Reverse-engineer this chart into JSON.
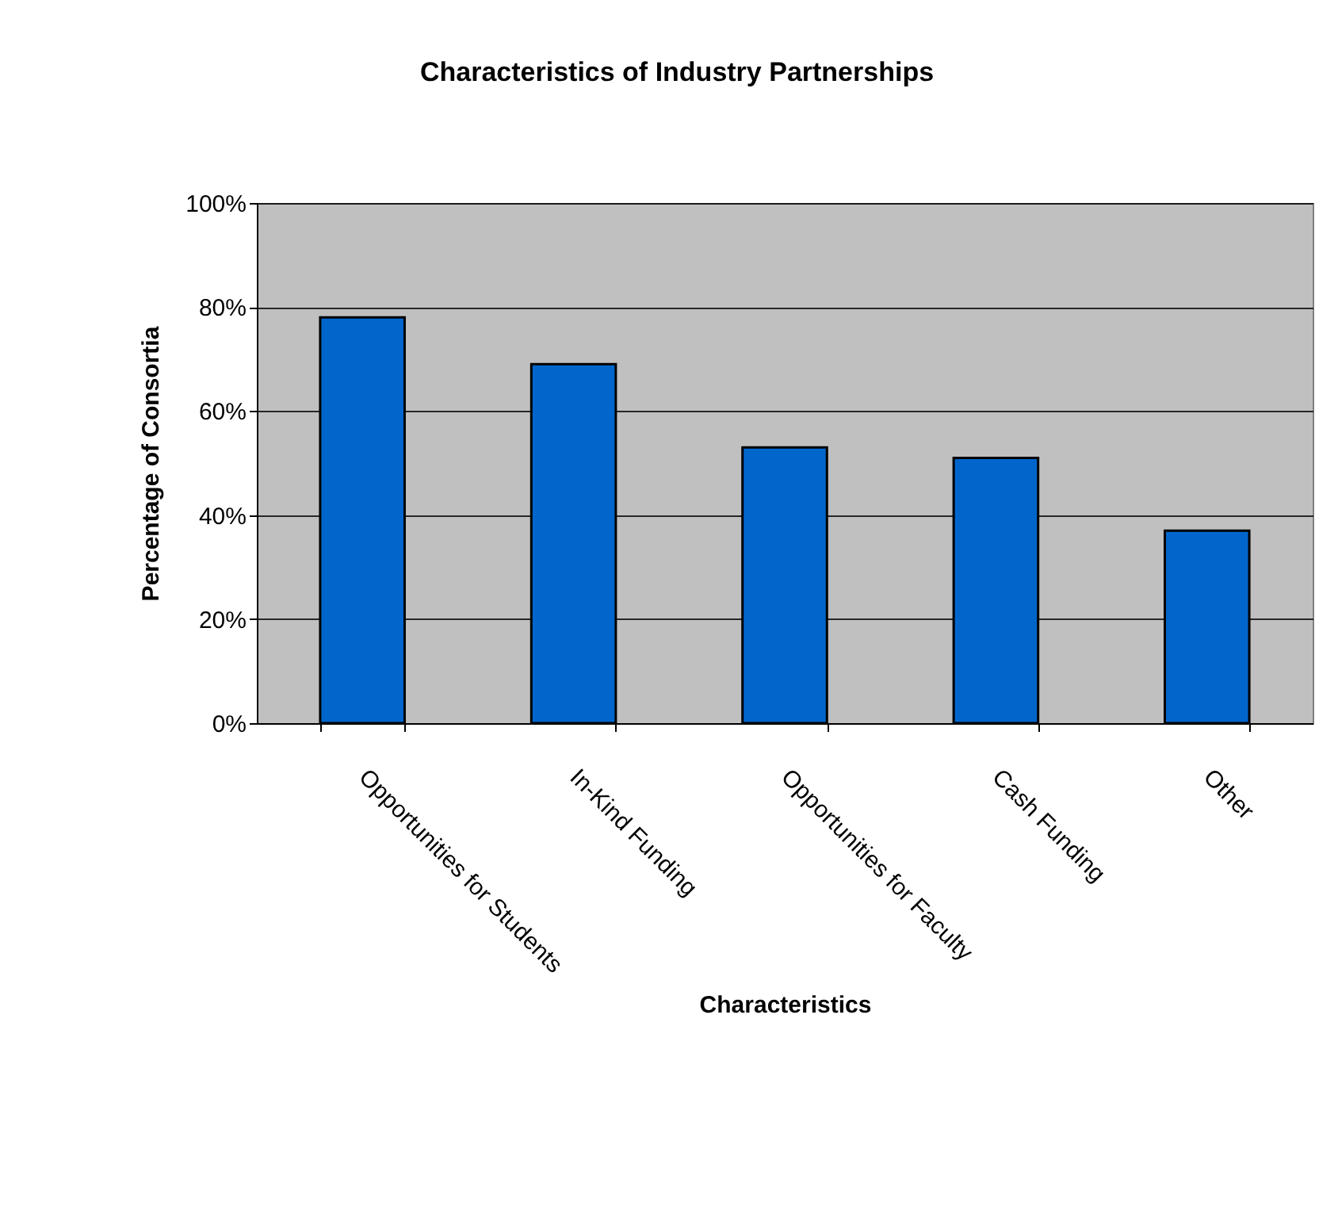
{
  "chart_data": {
    "type": "bar",
    "title": "Characteristics of Industry Partnerships",
    "xlabel": "Characteristics",
    "ylabel": "Percentage of Consortia",
    "categories": [
      "Opportunities for Students",
      "In-Kind Funding",
      "Opportunities for Faculty",
      "Cash Funding",
      "Other"
    ],
    "values": [
      78,
      69,
      53,
      51,
      37
    ],
    "color": "#0066cc",
    "ylim": [
      0,
      100
    ],
    "yticks": [
      {
        "value": 0,
        "label": "0%"
      },
      {
        "value": 20,
        "label": "20%"
      },
      {
        "value": 40,
        "label": "40%"
      },
      {
        "value": 60,
        "label": "60%"
      },
      {
        "value": 80,
        "label": "80%"
      },
      {
        "value": 100,
        "label": "100%"
      }
    ],
    "grid": "y"
  }
}
